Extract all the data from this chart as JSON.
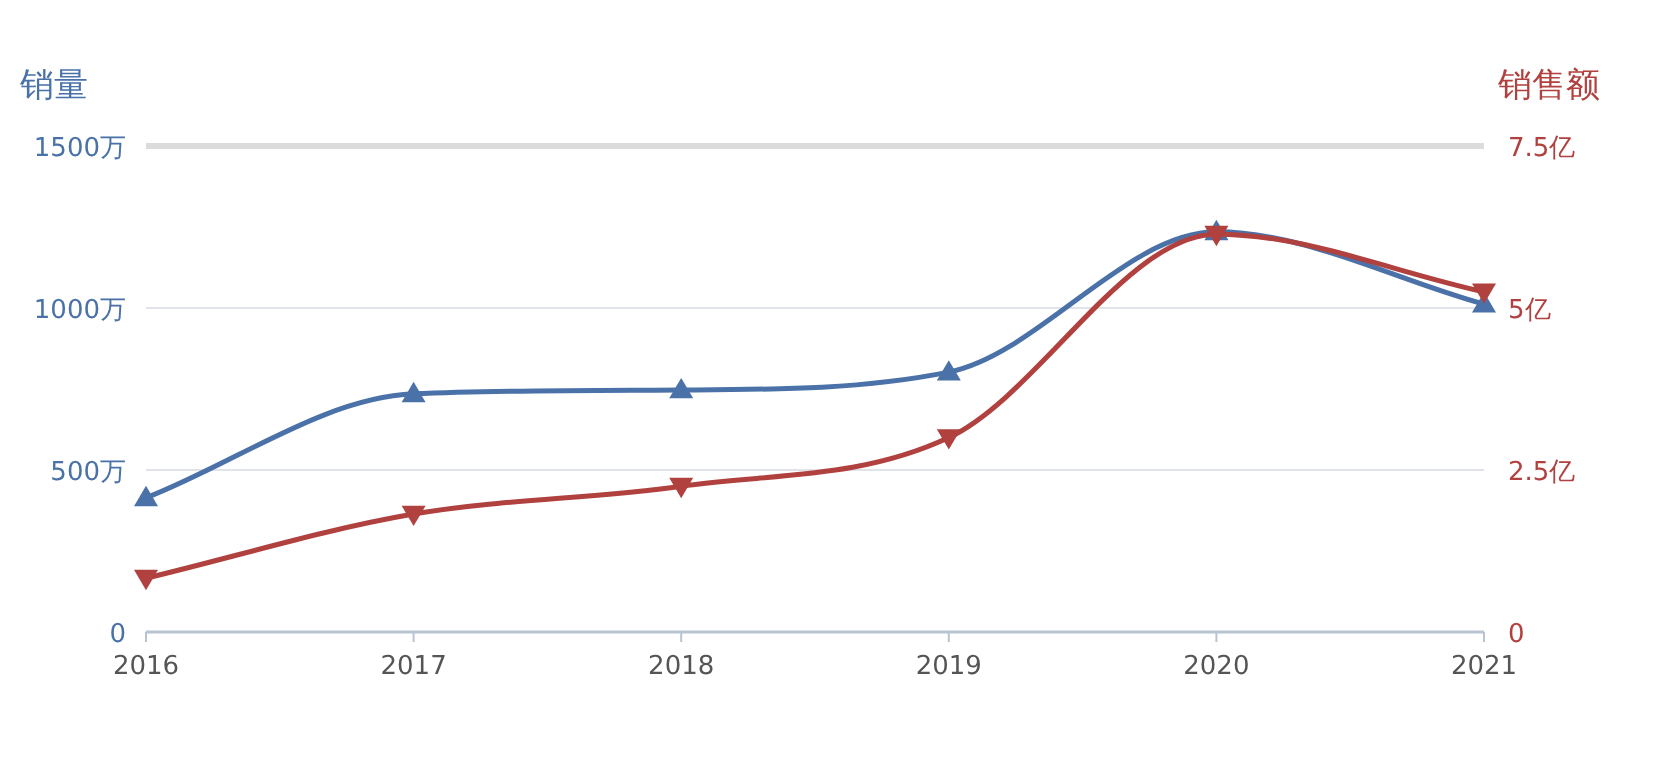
{
  "chart_data": {
    "type": "line",
    "ylabel": "销量",
    "y2label": "销售额",
    "categories": [
      "2016",
      "2017",
      "2018",
      "2019",
      "2020",
      "2021"
    ],
    "series": [
      {
        "color": "#4a72a8",
        "marker": "triangle",
        "values": [
          414,
          735,
          747,
          802,
          1235,
          1012
        ]
      },
      {
        "color": "#b0413e",
        "marker": "triangle",
        "axis": "y2",
        "values": [
          0.83,
          1.82,
          2.25,
          3.0,
          6.14,
          5.25
        ]
      }
    ],
    "ylim": [
      0,
      1500
    ],
    "yticks": [
      {
        "value": 0,
        "label": "0"
      },
      {
        "value": 500,
        "label": "500万"
      },
      {
        "value": 1000,
        "label": "1000万"
      },
      {
        "value": 1500,
        "label": "1500万"
      }
    ],
    "y2lim": [
      0,
      7.5
    ],
    "y2ticks": [
      {
        "value": 0,
        "label": "0"
      },
      {
        "value": 2.5,
        "label": "2.5亿"
      },
      {
        "value": 5,
        "label": "5亿"
      },
      {
        "value": 7.5,
        "label": "7.5亿"
      }
    ],
    "grid": "y",
    "line_style": "solid"
  }
}
